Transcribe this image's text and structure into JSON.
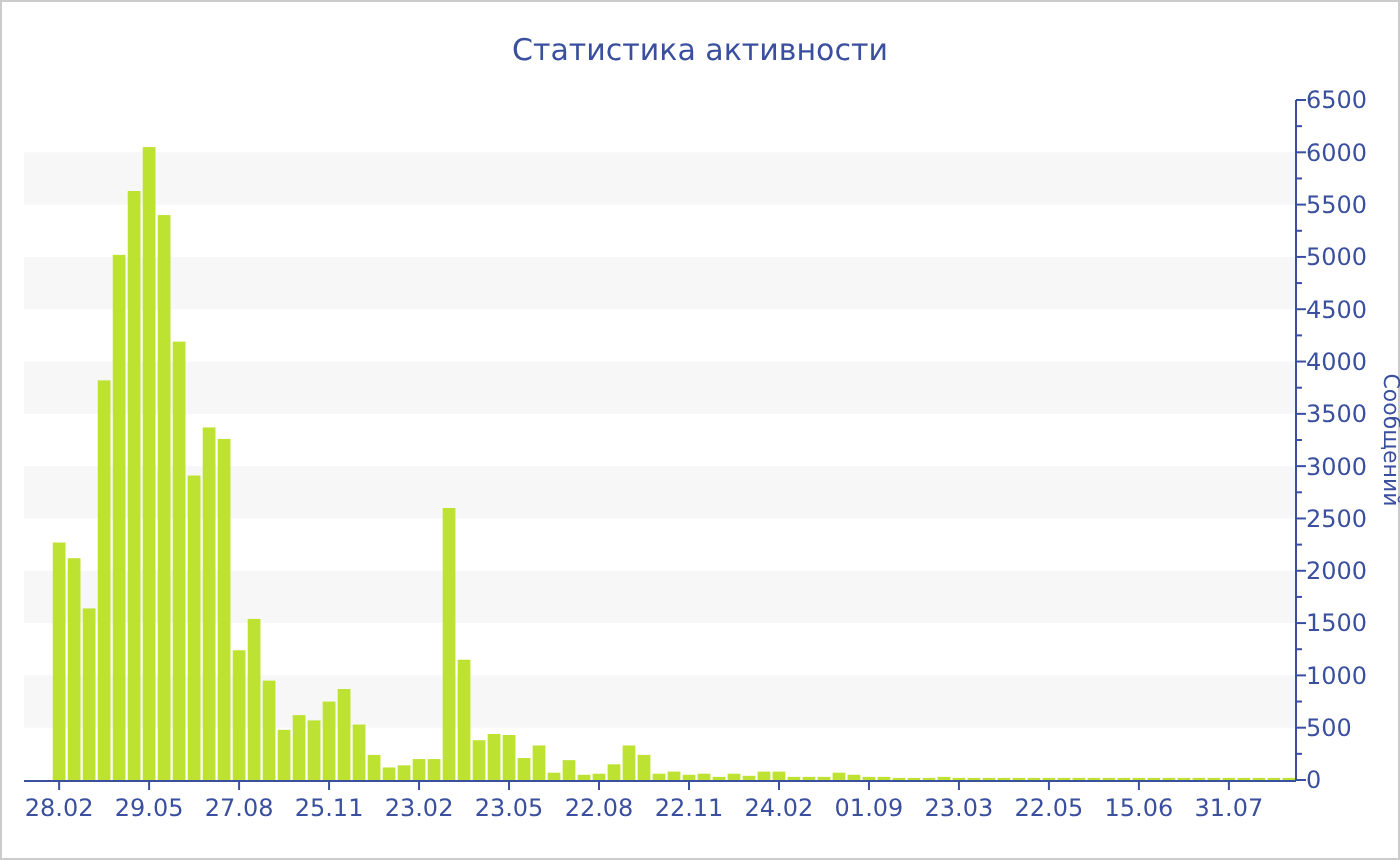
{
  "chart_data": {
    "type": "bar",
    "title": "Статистика активности",
    "ylabel": "Сообщений",
    "categories": [
      "28.02",
      null,
      null,
      null,
      null,
      null,
      "29.05",
      null,
      null,
      null,
      null,
      null,
      "27.08",
      null,
      null,
      null,
      null,
      null,
      "25.11",
      null,
      null,
      null,
      null,
      null,
      "23.02",
      null,
      null,
      null,
      null,
      null,
      "23.05",
      null,
      null,
      null,
      null,
      null,
      "22.08",
      null,
      null,
      null,
      null,
      null,
      "22.11",
      null,
      null,
      null,
      null,
      null,
      "24.02",
      null,
      null,
      null,
      null,
      null,
      "01.09",
      null,
      null,
      null,
      null,
      null,
      "23.03",
      null,
      null,
      null,
      null,
      null,
      "22.05",
      null,
      null,
      null,
      null,
      null,
      "15.06",
      null,
      null,
      null,
      null,
      null,
      "31.07",
      null,
      null,
      null,
      null
    ],
    "values": [
      2270,
      2120,
      1640,
      3820,
      5020,
      5630,
      6050,
      5400,
      4190,
      2910,
      3370,
      3260,
      1240,
      1540,
      950,
      480,
      620,
      570,
      750,
      870,
      530,
      240,
      120,
      140,
      200,
      200,
      2600,
      1150,
      380,
      440,
      430,
      210,
      330,
      70,
      190,
      50,
      60,
      150,
      330,
      240,
      60,
      80,
      50,
      60,
      30,
      60,
      40,
      80,
      80,
      30,
      30,
      30,
      70,
      50,
      30,
      30,
      20,
      20,
      20,
      30,
      20,
      20,
      20,
      20,
      20,
      20,
      20,
      20,
      20,
      20,
      20,
      20,
      20,
      20,
      20,
      20,
      20,
      20,
      20,
      20,
      20,
      20,
      20
    ],
    "color": "#bde232",
    "ylim": [
      0,
      6500
    ],
    "yticks": [
      0,
      {
        "value": 250,
        "label": null
      },
      500,
      {
        "value": 750,
        "label": null
      },
      1000,
      {
        "value": 1250,
        "label": null
      },
      1500,
      {
        "value": 1750,
        "label": null
      },
      2000,
      {
        "value": 2250,
        "label": null
      },
      2500,
      {
        "value": 2750,
        "label": null
      },
      3000,
      {
        "value": 3250,
        "label": null
      },
      3500,
      {
        "value": 3750,
        "label": null
      },
      4000,
      {
        "value": 4250,
        "label": null
      },
      4500,
      {
        "value": 4750,
        "label": null
      },
      5000,
      {
        "value": 5250,
        "label": null
      },
      5500,
      {
        "value": 5750,
        "label": null
      },
      6000,
      {
        "value": 6250,
        "label": null
      },
      6500
    ],
    "bands": [
      {
        "axis": "y",
        "from": 500,
        "to": 1000,
        "color": "#f7f7f7"
      },
      {
        "axis": "y",
        "from": 1500,
        "to": 2000,
        "color": "#f7f7f7"
      },
      {
        "axis": "y",
        "from": 2500,
        "to": 3000,
        "color": "#f7f7f7"
      },
      {
        "axis": "y",
        "from": 3500,
        "to": 4000,
        "color": "#f7f7f7"
      },
      {
        "axis": "y",
        "from": 4500,
        "to": 5000,
        "color": "#f7f7f7"
      },
      {
        "axis": "y",
        "from": 5500,
        "to": 6000,
        "color": "#f7f7f7"
      }
    ]
  }
}
